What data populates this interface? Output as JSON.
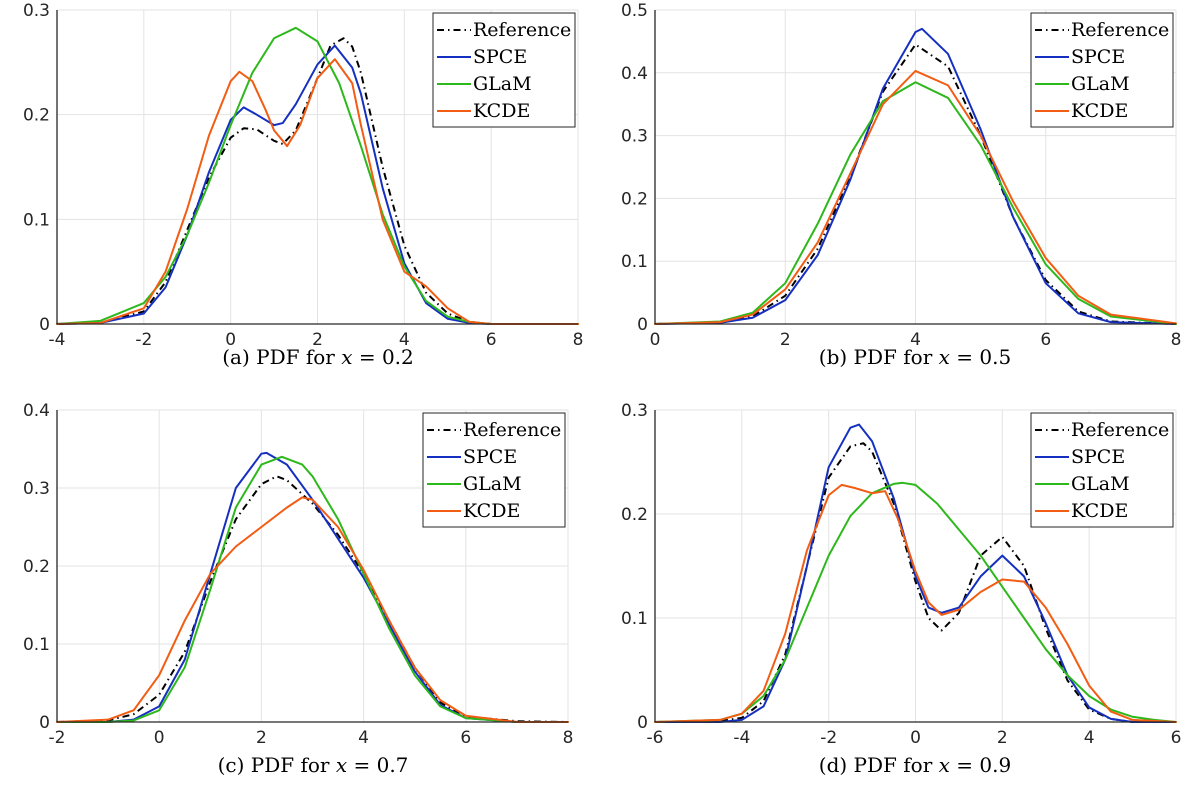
{
  "legend_labels": [
    "Reference",
    "SPCE",
    "GLaM",
    "KCDE"
  ],
  "colors": {
    "Reference": "#000000",
    "SPCE": "#1530c0",
    "GLaM": "#2db81b",
    "KCDE": "#f25c13",
    "grid": "#e3e3e3",
    "axis": "#262626"
  },
  "captions": [
    {
      "prefix": "(a) PDF for ",
      "var": "x",
      "suffix": " = 0.2"
    },
    {
      "prefix": "(b) PDF for ",
      "var": "x",
      "suffix": " = 0.5"
    },
    {
      "prefix": "(c) PDF for ",
      "var": "x",
      "suffix": " = 0.7"
    },
    {
      "prefix": "(d) PDF for ",
      "var": "x",
      "suffix": " = 0.9"
    }
  ],
  "chart_data": [
    {
      "type": "line",
      "xlim": [
        -4,
        8
      ],
      "ylim": [
        0,
        0.3
      ],
      "xticks": [
        -4,
        -2,
        0,
        2,
        4,
        6,
        8
      ],
      "yticks": [
        0,
        0.1,
        0.2,
        0.3
      ],
      "grid": true,
      "legend_position": "top-right",
      "series": [
        {
          "name": "Reference",
          "style": "dashdot",
          "x": [
            -4,
            -3,
            -2,
            -1.5,
            -1,
            -0.5,
            0,
            0.3,
            0.6,
            1,
            1.2,
            1.5,
            2,
            2.3,
            2.6,
            2.8,
            3,
            3.5,
            4,
            4.5,
            5,
            5.5,
            6,
            7,
            8
          ],
          "y": [
            0,
            0.001,
            0.012,
            0.04,
            0.09,
            0.14,
            0.178,
            0.187,
            0.186,
            0.175,
            0.172,
            0.185,
            0.235,
            0.266,
            0.273,
            0.265,
            0.24,
            0.15,
            0.075,
            0.03,
            0.01,
            0.002,
            0,
            0,
            0
          ]
        },
        {
          "name": "SPCE",
          "style": "solid",
          "x": [
            -4,
            -3,
            -2,
            -1.5,
            -1,
            -0.5,
            0,
            0.3,
            0.6,
            1,
            1.2,
            1.5,
            2,
            2.4,
            2.8,
            3,
            3.5,
            4,
            4.5,
            5,
            5.5,
            6,
            7,
            8
          ],
          "y": [
            0,
            0.001,
            0.01,
            0.035,
            0.085,
            0.145,
            0.195,
            0.207,
            0.2,
            0.19,
            0.192,
            0.21,
            0.248,
            0.266,
            0.245,
            0.22,
            0.13,
            0.058,
            0.02,
            0.005,
            0.001,
            0,
            0,
            0
          ]
        },
        {
          "name": "GLaM",
          "style": "solid",
          "x": [
            -4,
            -3,
            -2,
            -1.5,
            -1,
            -0.5,
            0,
            0.5,
            1,
            1.5,
            2,
            2.5,
            3,
            3.5,
            4,
            4.5,
            5,
            5.5,
            6,
            7,
            8
          ],
          "y": [
            0,
            0.003,
            0.02,
            0.045,
            0.085,
            0.135,
            0.19,
            0.24,
            0.273,
            0.283,
            0.27,
            0.23,
            0.17,
            0.105,
            0.055,
            0.022,
            0.007,
            0.002,
            0,
            0,
            0
          ]
        },
        {
          "name": "KCDE",
          "style": "solid",
          "x": [
            -4,
            -3,
            -2,
            -1.5,
            -1,
            -0.5,
            0,
            0.2,
            0.5,
            0.8,
            1,
            1.3,
            1.6,
            2,
            2.4,
            2.8,
            3,
            3.5,
            4,
            4.5,
            5,
            5.5,
            6,
            7,
            8
          ],
          "y": [
            0,
            0.001,
            0.015,
            0.05,
            0.11,
            0.18,
            0.232,
            0.241,
            0.232,
            0.205,
            0.185,
            0.17,
            0.19,
            0.235,
            0.253,
            0.23,
            0.19,
            0.1,
            0.05,
            0.036,
            0.015,
            0.002,
            0,
            0,
            0
          ]
        }
      ]
    },
    {
      "type": "line",
      "xlim": [
        0,
        8
      ],
      "ylim": [
        0,
        0.5
      ],
      "xticks": [
        0,
        2,
        4,
        6,
        8
      ],
      "yticks": [
        0,
        0.1,
        0.2,
        0.3,
        0.4,
        0.5
      ],
      "grid": true,
      "legend_position": "top-right",
      "series": [
        {
          "name": "Reference",
          "style": "dashdot",
          "x": [
            0,
            1,
            1.5,
            2,
            2.5,
            3,
            3.5,
            4,
            4.5,
            5,
            5.5,
            6,
            6.5,
            7,
            8
          ],
          "y": [
            0,
            0.003,
            0.012,
            0.045,
            0.12,
            0.235,
            0.37,
            0.445,
            0.41,
            0.3,
            0.17,
            0.07,
            0.02,
            0.004,
            0
          ]
        },
        {
          "name": "SPCE",
          "style": "solid",
          "x": [
            0,
            1,
            1.5,
            2,
            2.5,
            3,
            3.5,
            4,
            4.1,
            4.5,
            5,
            5.5,
            6,
            6.5,
            7,
            8
          ],
          "y": [
            0,
            0.002,
            0.01,
            0.038,
            0.11,
            0.23,
            0.375,
            0.465,
            0.47,
            0.43,
            0.31,
            0.17,
            0.065,
            0.017,
            0.003,
            0
          ]
        },
        {
          "name": "GLaM",
          "style": "solid",
          "x": [
            0,
            1,
            1.5,
            2,
            2.5,
            3,
            3.5,
            4,
            4.5,
            5,
            5.5,
            6,
            6.5,
            7,
            8
          ],
          "y": [
            0,
            0.004,
            0.018,
            0.065,
            0.16,
            0.27,
            0.355,
            0.385,
            0.36,
            0.285,
            0.185,
            0.095,
            0.04,
            0.012,
            0
          ]
        },
        {
          "name": "KCDE",
          "style": "solid",
          "x": [
            0,
            1,
            1.5,
            2,
            2.5,
            3,
            3.5,
            4,
            4.5,
            5,
            5.5,
            6,
            6.5,
            7,
            8
          ],
          "y": [
            0,
            0.003,
            0.015,
            0.055,
            0.13,
            0.24,
            0.35,
            0.403,
            0.38,
            0.3,
            0.195,
            0.105,
            0.045,
            0.015,
            0.001
          ]
        }
      ]
    },
    {
      "type": "line",
      "xlim": [
        -2,
        8
      ],
      "ylim": [
        0,
        0.4
      ],
      "xticks": [
        -2,
        0,
        2,
        4,
        6,
        8
      ],
      "yticks": [
        0,
        0.1,
        0.2,
        0.3,
        0.4
      ],
      "grid": true,
      "legend_position": "top-right",
      "series": [
        {
          "name": "Reference",
          "style": "dashdot",
          "x": [
            -2,
            -1,
            -0.5,
            0,
            0.5,
            1,
            1.5,
            2,
            2.3,
            2.5,
            3,
            3.5,
            4,
            4.5,
            5,
            5.5,
            6,
            7,
            8
          ],
          "y": [
            0,
            0.002,
            0.01,
            0.035,
            0.09,
            0.18,
            0.26,
            0.305,
            0.315,
            0.31,
            0.28,
            0.24,
            0.19,
            0.13,
            0.07,
            0.025,
            0.007,
            0.001,
            0
          ]
        },
        {
          "name": "SPCE",
          "style": "solid",
          "x": [
            -2,
            -1,
            -0.5,
            0,
            0.5,
            1,
            1.5,
            2,
            2.1,
            2.5,
            3,
            3.5,
            4,
            4.5,
            5,
            5.5,
            6,
            7,
            8
          ],
          "y": [
            0,
            0,
            0.003,
            0.02,
            0.08,
            0.19,
            0.3,
            0.344,
            0.345,
            0.33,
            0.285,
            0.235,
            0.185,
            0.125,
            0.065,
            0.022,
            0.005,
            0,
            0
          ]
        },
        {
          "name": "GLaM",
          "style": "solid",
          "x": [
            -2,
            -1,
            -0.5,
            0,
            0.5,
            1,
            1.5,
            2,
            2.4,
            2.8,
            3,
            3.5,
            4,
            4.5,
            5,
            5.5,
            6,
            7,
            8
          ],
          "y": [
            0,
            0,
            0.002,
            0.015,
            0.07,
            0.17,
            0.275,
            0.33,
            0.34,
            0.33,
            0.315,
            0.26,
            0.19,
            0.12,
            0.06,
            0.02,
            0.005,
            0,
            0
          ]
        },
        {
          "name": "KCDE",
          "style": "solid",
          "x": [
            -2,
            -1,
            -0.5,
            0,
            0.5,
            1,
            1.5,
            2,
            2.5,
            2.8,
            3,
            3.5,
            4,
            4.5,
            5,
            5.5,
            6,
            7,
            8
          ],
          "y": [
            0,
            0.003,
            0.015,
            0.06,
            0.13,
            0.19,
            0.225,
            0.25,
            0.275,
            0.288,
            0.285,
            0.25,
            0.195,
            0.13,
            0.07,
            0.028,
            0.008,
            0,
            0
          ]
        }
      ]
    },
    {
      "type": "line",
      "xlim": [
        -6,
        6
      ],
      "ylim": [
        0,
        0.3
      ],
      "xticks": [
        -6,
        -4,
        -2,
        0,
        2,
        4,
        6
      ],
      "yticks": [
        0,
        0.1,
        0.2,
        0.3
      ],
      "grid": true,
      "legend_position": "top-right",
      "series": [
        {
          "name": "Reference",
          "style": "dashdot",
          "x": [
            -6,
            -4.5,
            -4,
            -3.5,
            -3,
            -2.5,
            -2,
            -1.5,
            -1.2,
            -1,
            -0.5,
            0,
            0.3,
            0.6,
            1,
            1.5,
            2,
            2.5,
            3,
            3.5,
            4,
            4.5,
            5,
            6
          ],
          "y": [
            0,
            0.001,
            0.004,
            0.02,
            0.065,
            0.15,
            0.235,
            0.265,
            0.268,
            0.26,
            0.21,
            0.135,
            0.1,
            0.088,
            0.105,
            0.16,
            0.178,
            0.15,
            0.09,
            0.04,
            0.012,
            0.003,
            0,
            0
          ]
        },
        {
          "name": "SPCE",
          "style": "solid",
          "x": [
            -6,
            -4.5,
            -4,
            -3.5,
            -3,
            -2.5,
            -2,
            -1.5,
            -1.3,
            -1,
            -0.5,
            0,
            0.3,
            0.6,
            1,
            1.5,
            2,
            2.5,
            3,
            3.5,
            4,
            4.5,
            5,
            6
          ],
          "y": [
            0,
            0,
            0.002,
            0.015,
            0.06,
            0.15,
            0.245,
            0.283,
            0.286,
            0.27,
            0.215,
            0.14,
            0.11,
            0.105,
            0.11,
            0.14,
            0.16,
            0.14,
            0.095,
            0.045,
            0.014,
            0.003,
            0,
            0
          ]
        },
        {
          "name": "GLaM",
          "style": "solid",
          "x": [
            -6,
            -4.5,
            -4,
            -3.5,
            -3,
            -2.5,
            -2,
            -1.5,
            -1,
            -0.5,
            -0.3,
            0,
            0.5,
            1,
            1.5,
            2,
            2.5,
            3,
            3.5,
            4,
            4.5,
            5,
            5.5,
            6
          ],
          "y": [
            0,
            0.002,
            0.008,
            0.025,
            0.06,
            0.11,
            0.16,
            0.198,
            0.22,
            0.229,
            0.23,
            0.228,
            0.21,
            0.185,
            0.16,
            0.13,
            0.1,
            0.07,
            0.045,
            0.025,
            0.012,
            0.005,
            0.002,
            0
          ]
        },
        {
          "name": "KCDE",
          "style": "solid",
          "x": [
            -6,
            -4.5,
            -4,
            -3.5,
            -3,
            -2.5,
            -2,
            -1.7,
            -1.4,
            -1,
            -0.7,
            -0.4,
            0,
            0.3,
            0.6,
            1,
            1.5,
            2,
            2.5,
            3,
            3.5,
            4,
            4.5,
            5,
            6
          ],
          "y": [
            0,
            0.002,
            0.008,
            0.03,
            0.085,
            0.165,
            0.218,
            0.228,
            0.225,
            0.22,
            0.222,
            0.195,
            0.145,
            0.115,
            0.103,
            0.108,
            0.125,
            0.137,
            0.135,
            0.11,
            0.075,
            0.035,
            0.01,
            0.002,
            0
          ]
        }
      ]
    }
  ]
}
